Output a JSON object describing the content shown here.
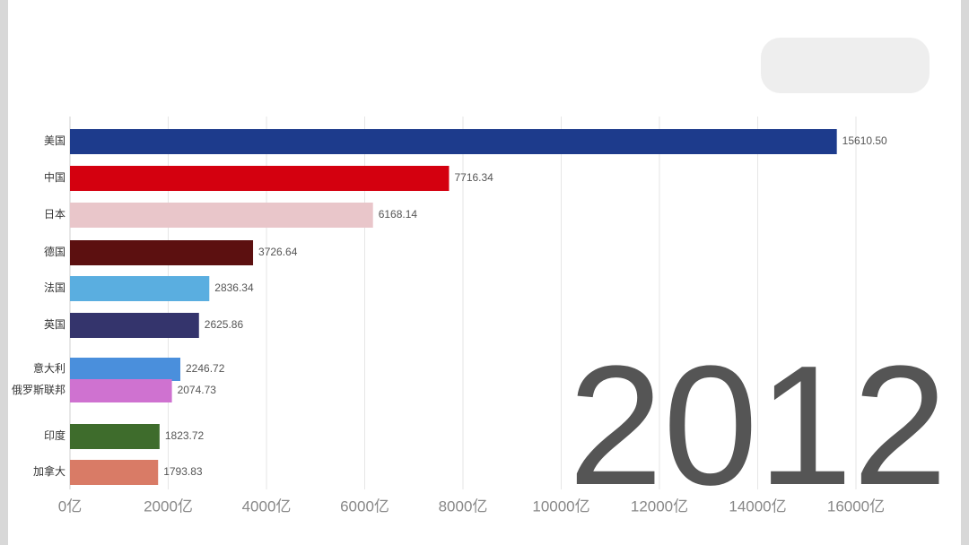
{
  "chart_data": {
    "type": "bar",
    "orientation": "horizontal",
    "categories": [
      "美国",
      "中国",
      "日本",
      "德国",
      "法国",
      "英国",
      "意大利",
      "俄罗斯联邦",
      "印度",
      "加拿大"
    ],
    "values": [
      15610.5,
      7716.34,
      6168.14,
      3726.64,
      2836.34,
      2625.86,
      2246.72,
      2074.73,
      1823.72,
      1793.83
    ],
    "value_labels": [
      "15610.50",
      "7716.34",
      "6168.14",
      "3726.64",
      "2836.34",
      "2625.86",
      "2246.72",
      "2074.73",
      "1823.72",
      "1793.83"
    ],
    "colors": [
      "#1d3b8c",
      "#d4000f",
      "#e9c6ca",
      "#5c1010",
      "#5aaee0",
      "#34346c",
      "#4a8fdc",
      "#cf72d0",
      "#3e6c2c",
      "#d97b66"
    ],
    "xlim": [
      0,
      16000
    ],
    "xticks": [
      {
        "value": 0,
        "label": "0亿"
      },
      {
        "value": 2000,
        "label": "2000亿"
      },
      {
        "value": 4000,
        "label": "4000亿"
      },
      {
        "value": 6000,
        "label": "6000亿"
      },
      {
        "value": 8000,
        "label": "8000亿"
      },
      {
        "value": 10000,
        "label": "10000亿"
      },
      {
        "value": 12000,
        "label": "12000亿"
      },
      {
        "value": 14000,
        "label": "14000亿"
      },
      {
        "value": 16000,
        "label": "16000亿"
      }
    ],
    "grid": true,
    "annotation": "2012"
  }
}
